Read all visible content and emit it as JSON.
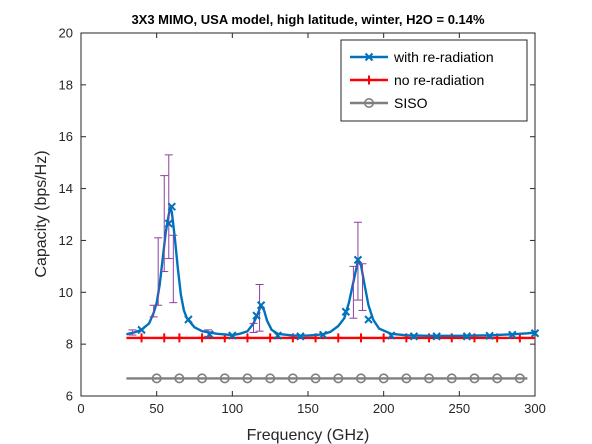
{
  "chart_data": {
    "type": "line",
    "title": "3X3 MIMO, USA model, high latitude, winter, H2O = 0.14%",
    "xlabel": "Frequency (GHz)",
    "ylabel": "Capacity (bps/Hz)",
    "xlim": [
      0,
      300
    ],
    "ylim": [
      6,
      20
    ],
    "xticks": [
      0,
      50,
      100,
      150,
      200,
      250,
      300
    ],
    "yticks": [
      6,
      8,
      10,
      12,
      14,
      16,
      18,
      20
    ],
    "xtick_labels": [
      "0",
      "50",
      "100",
      "150",
      "200",
      "250",
      "300"
    ],
    "ytick_labels": [
      "6",
      "8",
      "10",
      "12",
      "14",
      "16",
      "18",
      "20"
    ],
    "legend_position": "top-right",
    "grid": false,
    "series": [
      {
        "name": "with re-radiation",
        "color": "#0072BD",
        "marker": "x",
        "curve": [
          [
            30,
            8.38
          ],
          [
            35,
            8.45
          ],
          [
            40,
            8.55
          ],
          [
            45,
            8.8
          ],
          [
            48,
            9.2
          ],
          [
            50,
            9.6
          ],
          [
            52,
            10.3
          ],
          [
            54,
            11.3
          ],
          [
            56,
            12.3
          ],
          [
            58,
            13.0
          ],
          [
            59,
            13.28
          ],
          [
            60,
            13.1
          ],
          [
            62,
            12.1
          ],
          [
            64,
            10.9
          ],
          [
            66,
            9.9
          ],
          [
            68,
            9.3
          ],
          [
            70,
            9.0
          ],
          [
            75,
            8.65
          ],
          [
            80,
            8.5
          ],
          [
            90,
            8.4
          ],
          [
            100,
            8.35
          ],
          [
            105,
            8.4
          ],
          [
            110,
            8.5
          ],
          [
            114,
            8.8
          ],
          [
            117,
            9.2
          ],
          [
            119,
            9.5
          ],
          [
            121,
            9.3
          ],
          [
            123,
            8.9
          ],
          [
            126,
            8.55
          ],
          [
            130,
            8.4
          ],
          [
            140,
            8.33
          ],
          [
            150,
            8.33
          ],
          [
            160,
            8.38
          ],
          [
            165,
            8.48
          ],
          [
            170,
            8.7
          ],
          [
            174,
            9.0
          ],
          [
            177,
            9.6
          ],
          [
            180,
            10.4
          ],
          [
            183,
            11.2
          ],
          [
            185,
            11.05
          ],
          [
            187,
            10.4
          ],
          [
            190,
            9.5
          ],
          [
            193,
            8.95
          ],
          [
            197,
            8.6
          ],
          [
            205,
            8.4
          ],
          [
            215,
            8.34
          ],
          [
            230,
            8.32
          ],
          [
            250,
            8.32
          ],
          [
            270,
            8.34
          ],
          [
            285,
            8.38
          ],
          [
            295,
            8.42
          ],
          [
            300,
            8.45
          ]
        ],
        "markers": [
          [
            40,
            8.55
          ],
          [
            58,
            12.65
          ],
          [
            60,
            13.3
          ],
          [
            71,
            8.95
          ],
          [
            85,
            8.38
          ],
          [
            100,
            8.33
          ],
          [
            116,
            9.1
          ],
          [
            119,
            9.5
          ],
          [
            130,
            8.33
          ],
          [
            145,
            8.3
          ],
          [
            160,
            8.36
          ],
          [
            175,
            9.25
          ],
          [
            183,
            11.25
          ],
          [
            190,
            8.95
          ],
          [
            205,
            8.33
          ],
          [
            220,
            8.3
          ],
          [
            235,
            8.3
          ],
          [
            255,
            8.3
          ],
          [
            270,
            8.32
          ],
          [
            285,
            8.36
          ],
          [
            300,
            8.42
          ]
        ],
        "error_bars": [
          [
            34,
            8.4,
            8.35,
            8.55
          ],
          [
            48,
            9.25,
            9.05,
            9.5
          ],
          [
            51,
            10.8,
            9.5,
            12.1
          ],
          [
            55,
            12.65,
            10.8,
            14.5
          ],
          [
            58,
            13.3,
            11.3,
            15.3
          ],
          [
            61,
            10.9,
            9.6,
            12.2
          ],
          [
            84,
            8.42,
            8.3,
            8.55
          ],
          [
            114,
            8.6,
            8.45,
            8.8
          ],
          [
            118,
            9.4,
            8.5,
            10.3
          ],
          [
            180,
            10.0,
            9.0,
            11.0
          ],
          [
            183,
            11.2,
            9.7,
            12.7
          ],
          [
            186,
            10.2,
            9.3,
            11.1
          ]
        ]
      },
      {
        "name": "no re-radiation",
        "color": "#FF0000",
        "marker": "+",
        "curve": [
          [
            30,
            8.24
          ],
          [
            300,
            8.24
          ]
        ],
        "markers": [
          [
            40,
            8.24
          ],
          [
            55,
            8.24
          ],
          [
            65,
            8.24
          ],
          [
            80,
            8.24
          ],
          [
            95,
            8.24
          ],
          [
            110,
            8.24
          ],
          [
            125,
            8.24
          ],
          [
            140,
            8.24
          ],
          [
            155,
            8.24
          ],
          [
            170,
            8.24
          ],
          [
            185,
            8.24
          ],
          [
            200,
            8.24
          ],
          [
            215,
            8.24
          ],
          [
            230,
            8.24
          ],
          [
            245,
            8.24
          ],
          [
            260,
            8.24
          ],
          [
            275,
            8.24
          ],
          [
            290,
            8.24
          ]
        ]
      },
      {
        "name": "SISO",
        "color": "#7F7F7F",
        "marker": "o",
        "curve": [
          [
            30,
            6.68
          ],
          [
            295,
            6.68
          ]
        ],
        "markers": [
          [
            50,
            6.68
          ],
          [
            65,
            6.68
          ],
          [
            80,
            6.68
          ],
          [
            95,
            6.68
          ],
          [
            110,
            6.68
          ],
          [
            125,
            6.68
          ],
          [
            140,
            6.68
          ],
          [
            155,
            6.68
          ],
          [
            170,
            6.68
          ],
          [
            185,
            6.68
          ],
          [
            200,
            6.68
          ],
          [
            215,
            6.68
          ],
          [
            230,
            6.68
          ],
          [
            245,
            6.68
          ],
          [
            260,
            6.68
          ],
          [
            275,
            6.68
          ],
          [
            290,
            6.68
          ]
        ]
      }
    ]
  }
}
